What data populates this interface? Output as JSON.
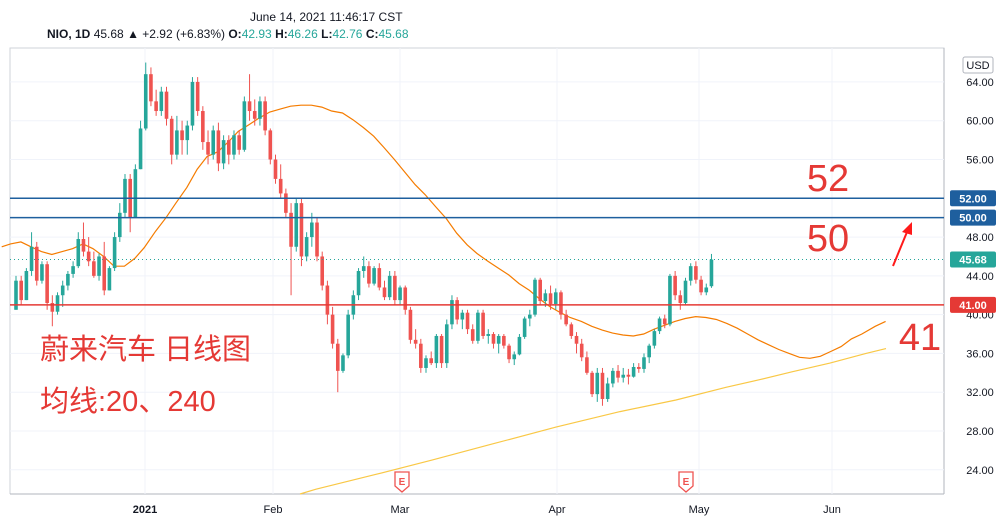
{
  "header": {
    "datetime": "June 14, 2021 11:46:17 CST",
    "symbol": "NIO, 1D",
    "last": "45.68",
    "change": "▲ +2.92 (+6.83%)",
    "o_label": "O:",
    "o_value": "42.93",
    "h_label": "H:",
    "h_value": "46.26",
    "l_label": "L:",
    "l_value": "42.76",
    "c_label": "C:",
    "c_value": "45.68"
  },
  "chart_data": {
    "type": "candlestick",
    "currency_label": "USD",
    "y_ticks": [
      "64.00",
      "60.00",
      "56.00",
      "52.00",
      "48.00",
      "44.00",
      "40.00",
      "36.00",
      "32.00",
      "28.00",
      "24.00"
    ],
    "x_labels": [
      "2021",
      "Feb",
      "Mar",
      "Apr",
      "May",
      "Jun"
    ],
    "ylim": [
      21.5,
      67.5
    ],
    "horizontal_lines": [
      {
        "value": 52,
        "label": "52.00",
        "color": "#1e5f9e"
      },
      {
        "value": 50,
        "label": "50.00",
        "color": "#1e5f9e"
      },
      {
        "value": 41,
        "label": "41.00",
        "color": "#e53935"
      }
    ],
    "last_price": {
      "value": 45.68,
      "label": "45.68",
      "color": "#26a69a"
    },
    "annotations": {
      "big_52": "52",
      "big_50": "50",
      "big_41": "41",
      "title_line1": "蔚来汽车 日线图",
      "title_line2": "均线:20、240",
      "earnings_marker": "E"
    },
    "colors": {
      "up": "#26a69a",
      "down": "#ef5350",
      "ma20": "#f57c00",
      "ma240": "#f9c846",
      "annotation": "#e53935"
    },
    "candles": [
      [
        40.5,
        44.0,
        40.5,
        43.5
      ],
      [
        43.5,
        44.0,
        41.0,
        41.5
      ],
      [
        41.5,
        44.8,
        41.5,
        44.5
      ],
      [
        44.5,
        48.5,
        44.0,
        47.0
      ],
      [
        47.0,
        47.5,
        43.0,
        43.5
      ],
      [
        43.5,
        45.5,
        43.2,
        45.2
      ],
      [
        45.2,
        45.5,
        40.5,
        41.2
      ],
      [
        41.2,
        42.0,
        38.8,
        40.3
      ],
      [
        40.3,
        42.3,
        40.0,
        42.0
      ],
      [
        42.0,
        43.5,
        40.8,
        43.0
      ],
      [
        43.0,
        44.5,
        42.5,
        44.2
      ],
      [
        44.2,
        45.5,
        43.8,
        45.0
      ],
      [
        45.0,
        48.5,
        44.8,
        47.8
      ],
      [
        47.8,
        49.5,
        46.0,
        46.5
      ],
      [
        46.5,
        48.0,
        45.0,
        45.5
      ],
      [
        45.5,
        46.5,
        43.8,
        44.0
      ],
      [
        44.0,
        46.3,
        43.5,
        46.0
      ],
      [
        46.0,
        47.5,
        42.0,
        42.5
      ],
      [
        42.5,
        45.0,
        42.5,
        44.8
      ],
      [
        44.8,
        48.5,
        44.5,
        48.0
      ],
      [
        48.0,
        51.5,
        47.5,
        50.5
      ],
      [
        50.5,
        54.5,
        50.0,
        54.0
      ],
      [
        54.0,
        54.5,
        48.5,
        50.0
      ],
      [
        50.0,
        55.5,
        50.0,
        55.0
      ],
      [
        55.0,
        60.0,
        55.0,
        59.2
      ],
      [
        59.2,
        66.0,
        59.0,
        64.8
      ],
      [
        64.8,
        65.5,
        61.5,
        62.0
      ],
      [
        62.0,
        63.2,
        60.5,
        61.0
      ],
      [
        61.0,
        63.5,
        60.5,
        63.0
      ],
      [
        63.0,
        63.5,
        59.5,
        60.2
      ],
      [
        60.2,
        60.5,
        55.5,
        56.5
      ],
      [
        56.5,
        60.5,
        56.0,
        59.0
      ],
      [
        59.0,
        60.0,
        56.5,
        58.0
      ],
      [
        58.0,
        60.0,
        56.5,
        59.5
      ],
      [
        59.5,
        64.5,
        59.0,
        64.0
      ],
      [
        64.0,
        64.5,
        60.5,
        61.0
      ],
      [
        61.0,
        61.5,
        57.0,
        57.8
      ],
      [
        57.8,
        59.0,
        55.5,
        56.5
      ],
      [
        56.5,
        59.5,
        56.0,
        59.0
      ],
      [
        59.0,
        59.8,
        54.8,
        55.6
      ],
      [
        55.6,
        58.5,
        55.0,
        58.0
      ],
      [
        58.0,
        58.5,
        55.5,
        56.5
      ],
      [
        56.5,
        59.0,
        56.0,
        58.5
      ],
      [
        58.5,
        59.0,
        56.5,
        57.0
      ],
      [
        57.0,
        62.5,
        56.8,
        62.0
      ],
      [
        62.0,
        64.8,
        60.0,
        61.0
      ],
      [
        61.0,
        62.2,
        59.5,
        60.2
      ],
      [
        60.2,
        62.5,
        59.5,
        62.0
      ],
      [
        62.0,
        62.5,
        58.5,
        59.0
      ],
      [
        59.0,
        59.2,
        55.5,
        56.0
      ],
      [
        56.0,
        56.5,
        53.5,
        54.0
      ],
      [
        54.0,
        55.5,
        52.0,
        52.5
      ],
      [
        52.5,
        53.0,
        50.0,
        50.5
      ],
      [
        50.5,
        51.5,
        42.0,
        47.0
      ],
      [
        47.0,
        52.0,
        46.5,
        51.5
      ],
      [
        51.5,
        52.0,
        45.0,
        46.0
      ],
      [
        46.0,
        48.5,
        45.5,
        48.0
      ],
      [
        48.0,
        50.5,
        47.0,
        49.5
      ],
      [
        49.5,
        50.0,
        45.5,
        46.0
      ],
      [
        46.0,
        46.5,
        42.5,
        43.0
      ],
      [
        43.0,
        43.5,
        39.0,
        40.0
      ],
      [
        40.0,
        40.8,
        36.5,
        37.0
      ],
      [
        37.0,
        37.5,
        32.0,
        34.2
      ],
      [
        34.2,
        36.0,
        34.0,
        35.8
      ],
      [
        35.8,
        40.5,
        35.5,
        40.0
      ],
      [
        40.0,
        42.5,
        39.5,
        42.0
      ],
      [
        42.0,
        44.8,
        41.5,
        44.5
      ],
      [
        44.5,
        46.0,
        43.8,
        45.0
      ],
      [
        45.0,
        45.5,
        42.8,
        43.2
      ],
      [
        43.2,
        45.0,
        43.0,
        44.8
      ],
      [
        44.8,
        45.3,
        42.5,
        42.8
      ],
      [
        42.8,
        43.5,
        41.5,
        41.8
      ],
      [
        41.8,
        44.5,
        41.5,
        44.0
      ],
      [
        44.0,
        44.5,
        41.0,
        41.5
      ],
      [
        41.5,
        43.0,
        41.0,
        42.8
      ],
      [
        42.8,
        43.0,
        40.0,
        40.5
      ],
      [
        40.5,
        40.8,
        37.0,
        37.4
      ],
      [
        37.4,
        38.5,
        36.5,
        37.0
      ],
      [
        37.0,
        37.5,
        34.0,
        34.5
      ],
      [
        34.5,
        35.8,
        34.0,
        35.5
      ],
      [
        35.5,
        36.2,
        34.8,
        35.0
      ],
      [
        35.0,
        38.0,
        34.5,
        37.8
      ],
      [
        37.8,
        38.0,
        34.5,
        35.0
      ],
      [
        35.0,
        39.5,
        34.5,
        39.0
      ],
      [
        39.0,
        42.0,
        38.5,
        41.5
      ],
      [
        41.5,
        41.8,
        39.0,
        39.5
      ],
      [
        39.5,
        40.5,
        38.5,
        40.2
      ],
      [
        40.2,
        40.5,
        38.0,
        38.5
      ],
      [
        38.5,
        39.0,
        37.0,
        37.3
      ],
      [
        37.3,
        40.5,
        37.0,
        40.2
      ],
      [
        40.2,
        40.5,
        37.5,
        37.8
      ],
      [
        37.8,
        38.5,
        37.0,
        38.0
      ],
      [
        38.0,
        38.2,
        36.5,
        37.0
      ],
      [
        37.0,
        38.0,
        36.0,
        37.8
      ],
      [
        37.8,
        38.0,
        36.5,
        36.8
      ],
      [
        36.8,
        37.0,
        35.0,
        35.4
      ],
      [
        35.4,
        36.2,
        34.8,
        35.9
      ],
      [
        35.9,
        38.0,
        35.8,
        37.7
      ],
      [
        37.7,
        39.8,
        37.5,
        39.6
      ],
      [
        39.6,
        40.5,
        38.8,
        40.0
      ],
      [
        40.0,
        43.8,
        39.8,
        43.6
      ],
      [
        43.6,
        43.8,
        41.0,
        41.4
      ],
      [
        41.4,
        42.6,
        40.8,
        42.2
      ],
      [
        42.2,
        43.0,
        40.5,
        41.1
      ],
      [
        41.1,
        42.7,
        40.5,
        42.3
      ],
      [
        42.3,
        42.5,
        39.5,
        40.0
      ],
      [
        40.0,
        40.5,
        38.8,
        39.0
      ],
      [
        39.0,
        39.2,
        37.5,
        37.8
      ],
      [
        37.8,
        38.2,
        36.0,
        37.0
      ],
      [
        37.0,
        37.5,
        35.2,
        35.6
      ],
      [
        35.6,
        36.2,
        33.8,
        34.0
      ],
      [
        34.0,
        34.2,
        31.5,
        31.8
      ],
      [
        31.8,
        34.5,
        31.0,
        34.0
      ],
      [
        34.0,
        34.5,
        30.6,
        31.3
      ],
      [
        31.3,
        33.5,
        31.0,
        32.9
      ],
      [
        32.9,
        34.5,
        32.5,
        34.2
      ],
      [
        34.2,
        34.8,
        33.0,
        33.5
      ],
      [
        33.5,
        34.5,
        33.0,
        33.8
      ],
      [
        33.8,
        34.4,
        32.8,
        33.6
      ],
      [
        33.6,
        35.0,
        33.5,
        34.6
      ],
      [
        34.6,
        35.0,
        34.0,
        34.4
      ],
      [
        34.4,
        36.0,
        34.0,
        35.6
      ],
      [
        35.6,
        37.0,
        35.0,
        36.8
      ],
      [
        36.8,
        38.5,
        36.5,
        38.3
      ],
      [
        38.3,
        39.8,
        38.0,
        39.6
      ],
      [
        39.6,
        40.0,
        38.6,
        39.0
      ],
      [
        39.0,
        44.2,
        38.8,
        44.0
      ],
      [
        44.0,
        44.5,
        41.5,
        42.0
      ],
      [
        42.0,
        42.5,
        40.5,
        41.2
      ],
      [
        41.2,
        43.8,
        41.0,
        43.5
      ],
      [
        43.5,
        45.3,
        43.0,
        45.0
      ],
      [
        45.0,
        45.5,
        43.2,
        43.6
      ],
      [
        43.6,
        44.0,
        42.0,
        42.3
      ],
      [
        42.3,
        43.2,
        42.0,
        42.8
      ],
      [
        42.93,
        46.26,
        42.76,
        45.68
      ]
    ],
    "ma20": [
      [
        47.0,
        1.7
      ],
      [
        47.3,
        10.5
      ],
      [
        47.5,
        20.9
      ],
      [
        47.0,
        31.0
      ],
      [
        46.5,
        41.4
      ],
      [
        46.2,
        51.8
      ],
      [
        46.5,
        62.2
      ],
      [
        46.8,
        72.5
      ],
      [
        47.3,
        83.0
      ],
      [
        46.8,
        93.0
      ],
      [
        46.0,
        103.7
      ],
      [
        45.0,
        114.0
      ],
      [
        45.0,
        124.4
      ],
      [
        45.8,
        134.8
      ],
      [
        46.9,
        144.2
      ],
      [
        48.6,
        155.6
      ],
      [
        50.0,
        166.0
      ],
      [
        51.5,
        175.9
      ],
      [
        53.1,
        186.8
      ],
      [
        55.0,
        197.2
      ],
      [
        56.3,
        207.0
      ],
      [
        56.8,
        217.9
      ],
      [
        57.8,
        228.3
      ],
      [
        58.9,
        238.3
      ],
      [
        59.6,
        249.1
      ],
      [
        60.3,
        259.5
      ],
      [
        60.9,
        269.8
      ],
      [
        61.2,
        280.2
      ],
      [
        61.5,
        290.6
      ],
      [
        61.6,
        301.0
      ],
      [
        61.6,
        311.4
      ],
      [
        61.4,
        321.8
      ],
      [
        61.0,
        331.6
      ],
      [
        60.8,
        342.5
      ],
      [
        60.1,
        352.9
      ],
      [
        59.3,
        363.3
      ],
      [
        58.4,
        373.7
      ],
      [
        57.3,
        383.4
      ],
      [
        56.0,
        394.4
      ],
      [
        54.7,
        404.8
      ],
      [
        53.4,
        415.2
      ],
      [
        52.4,
        424.9
      ],
      [
        51.1,
        435.9
      ],
      [
        49.9,
        446.3
      ],
      [
        48.4,
        456.7
      ],
      [
        47.2,
        467.1
      ],
      [
        46.3,
        477.0
      ],
      [
        45.5,
        487.9
      ],
      [
        44.8,
        498.3
      ],
      [
        44.1,
        508.7
      ],
      [
        43.2,
        519.1
      ],
      [
        42.5,
        529.5
      ],
      [
        41.6,
        539.8
      ],
      [
        40.8,
        550.2
      ],
      [
        40.2,
        560.6
      ],
      [
        39.7,
        570.1
      ],
      [
        39.3,
        581.4
      ],
      [
        38.8,
        591.8
      ],
      [
        38.4,
        602.2
      ],
      [
        38.1,
        612.6
      ],
      [
        37.9,
        622.9
      ],
      [
        37.8,
        633.3
      ],
      [
        38.0,
        643.7
      ],
      [
        38.5,
        654.1
      ],
      [
        38.9,
        664.5
      ],
      [
        39.3,
        674.9
      ],
      [
        39.6,
        685.3
      ],
      [
        39.8,
        695.7
      ],
      [
        39.7,
        706.0
      ],
      [
        39.5,
        716.4
      ],
      [
        39.1,
        726.8
      ],
      [
        38.6,
        737.2
      ],
      [
        38.0,
        747.6
      ],
      [
        37.4,
        758.0
      ],
      [
        36.9,
        768.4
      ],
      [
        36.4,
        778.8
      ],
      [
        36.0,
        789.1
      ],
      [
        35.6,
        799.5
      ],
      [
        35.5,
        809.9
      ],
      [
        35.7,
        820.3
      ],
      [
        36.2,
        830.7
      ],
      [
        36.7,
        841.1
      ],
      [
        37.5,
        851.4
      ],
      [
        38.0,
        861.9
      ],
      [
        38.8,
        875.2
      ],
      [
        39.3,
        885.6
      ]
    ],
    "ma240": [
      [
        21.5,
        300.0
      ],
      [
        22.0,
        316.0
      ],
      [
        23.5,
        375.0
      ],
      [
        25.0,
        432.0
      ],
      [
        26.6,
        490.0
      ],
      [
        28.4,
        556.0
      ],
      [
        30.0,
        620.0
      ],
      [
        31.2,
        676.0
      ],
      [
        32.5,
        726.0
      ],
      [
        33.3,
        760.0
      ],
      [
        34.1,
        792.0
      ],
      [
        35.0,
        830.0
      ],
      [
        36.0,
        866.0
      ],
      [
        36.5,
        886.0
      ]
    ]
  }
}
